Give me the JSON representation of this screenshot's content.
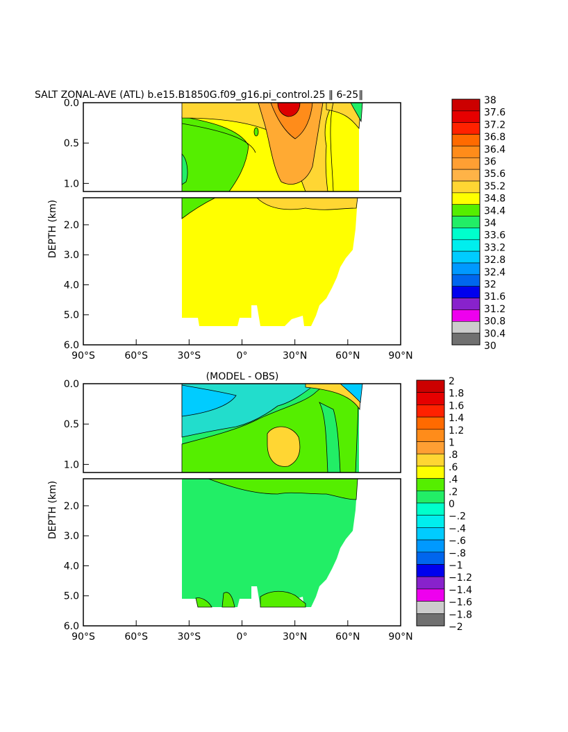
{
  "title": "SALT ZONAL-AVE (ATL) b.e15.B1850G.f09_g16.pi_control.25 ‖ 6-25‖",
  "colors": {
    "zero_band": "#22ee66",
    "band_02_04": "#55ee00",
    "band_04_06": "#ffff00",
    "band_06_08": "#ffd633",
    "band_neg": "#22ddcc",
    "salt_deep": "#ffff00",
    "salt_green": "#55ee00",
    "salt_gold": "#ffd633",
    "salt_orange": "#ffaa33",
    "salt_red": "#dd0000"
  },
  "chart_data": [
    {
      "type": "heatmap",
      "title": "SALT ZONAL-AVE (ATL) b.e15.B1850G.f09_g16.pi_control.25 ‖ 6-25‖",
      "ylabel": "DEPTH (km)",
      "x_ticks": [
        "90°S",
        "60°S",
        "30°S",
        "0°",
        "30°N",
        "60°N",
        "90°N"
      ],
      "x_tick_values": [
        -90,
        -60,
        -30,
        0,
        30,
        60,
        90
      ],
      "xlim": [
        -90,
        90
      ],
      "upper_y_ticks": [
        "0.0",
        "0.5",
        "1.0"
      ],
      "upper_y_values": [
        0,
        0.5,
        1.0
      ],
      "lower_y_ticks": [
        "2.0",
        "3.0",
        "4.0",
        "5.0",
        "6.0"
      ],
      "lower_y_values": [
        2,
        3,
        4,
        5,
        6
      ],
      "ylim": [
        0,
        6
      ],
      "colorbar_labels": [
        "38",
        "37.6",
        "37.2",
        "36.8",
        "36.4",
        "36",
        "35.6",
        "35.2",
        "34.8",
        "34.4",
        "34",
        "33.6",
        "33.2",
        "32.8",
        "32.4",
        "32",
        "31.6",
        "31.2",
        "30.8",
        "30.4",
        "30"
      ],
      "colorbar_colors": [
        "#cc0000",
        "#e60000",
        "#ff2200",
        "#ff6a00",
        "#ff8c1a",
        "#ff9f33",
        "#ffb347",
        "#ffd633",
        "#ffff00",
        "#55ee00",
        "#22ee66",
        "#00ffcc",
        "#00eeee",
        "#00ccff",
        "#0099ff",
        "#0066ee",
        "#0000ee",
        "#8822cc",
        "#ee00ee",
        "#cccccc",
        "#707070"
      ]
    },
    {
      "type": "heatmap",
      "title": "(MODEL - OBS)",
      "ylabel": "DEPTH (km)",
      "x_ticks": [
        "90°S",
        "60°S",
        "30°S",
        "0°",
        "30°N",
        "60°N",
        "90°N"
      ],
      "x_tick_values": [
        -90,
        -60,
        -30,
        0,
        30,
        60,
        90
      ],
      "xlim": [
        -90,
        90
      ],
      "upper_y_ticks": [
        "0.0",
        "0.5",
        "1.0"
      ],
      "upper_y_values": [
        0,
        0.5,
        1.0
      ],
      "lower_y_ticks": [
        "2.0",
        "3.0",
        "4.0",
        "5.0",
        "6.0"
      ],
      "lower_y_values": [
        2,
        3,
        4,
        5,
        6
      ],
      "ylim": [
        0,
        6
      ],
      "colorbar_labels": [
        "2",
        "1.8",
        "1.6",
        "1.4",
        "1.2",
        "1",
        ".8",
        ".6",
        ".4",
        ".2",
        "0",
        "−.2",
        "−.4",
        "−.6",
        "−.8",
        "−1",
        "−1.2",
        "−1.4",
        "−1.6",
        "−1.8",
        "−2"
      ],
      "colorbar_colors": [
        "#cc0000",
        "#e60000",
        "#ff2200",
        "#ff6a00",
        "#ff8c1a",
        "#ff9f33",
        "#ffd633",
        "#ffff00",
        "#55ee00",
        "#22ee66",
        "#00ffcc",
        "#00eeee",
        "#00ccff",
        "#0099ff",
        "#0066ee",
        "#0000ee",
        "#8822cc",
        "#ee00ee",
        "#cccccc",
        "#707070"
      ]
    }
  ]
}
